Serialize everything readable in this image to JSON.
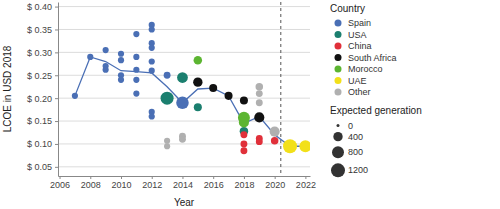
{
  "chart_data": {
    "type": "scatter",
    "x_label": "Year",
    "y_label": "LCOE in USD 2018",
    "xlim": [
      2005.9,
      2022.3
    ],
    "xticks": [
      2006,
      2008,
      2010,
      2012,
      2014,
      2016,
      2018,
      2020,
      2022
    ],
    "ylim": [
      0.03,
      0.41
    ],
    "yticks": [
      {
        "value": 0.05,
        "label": "$ 0.05"
      },
      {
        "value": 0.1,
        "label": "$ 0.10"
      },
      {
        "value": 0.15,
        "label": "$ 0.15"
      },
      {
        "value": 0.2,
        "label": "$ 0.20"
      },
      {
        "value": 0.25,
        "label": "$ 0.25"
      },
      {
        "value": 0.3,
        "label": "$ 0.30"
      },
      {
        "value": 0.35,
        "label": "$ 0.35"
      },
      {
        "value": 0.4,
        "label": "$ 0.40"
      }
    ],
    "grid": true,
    "legend": "right",
    "legend_title": "Country",
    "size_title": "Expected generation",
    "size_legend": [
      0,
      400,
      800,
      1200
    ],
    "vline_x": 2020.4,
    "trend": {
      "type": "line",
      "color": "#4a6fb5",
      "x": [
        2007,
        2008,
        2009,
        2010,
        2011,
        2012,
        2013,
        2014,
        2015,
        2016,
        2017,
        2018,
        2019,
        2020,
        2021,
        2022
      ],
      "values": [
        0.205,
        0.29,
        0.28,
        0.26,
        0.258,
        0.255,
        0.225,
        0.19,
        0.22,
        0.222,
        0.205,
        0.145,
        0.16,
        0.12,
        0.095,
        0.095
      ]
    },
    "series": [
      {
        "name": "Spain",
        "color": "#4a6fb5",
        "x": [
          2007,
          2008,
          2009,
          2009,
          2009,
          2010,
          2010,
          2010,
          2010,
          2011,
          2011,
          2011,
          2011,
          2011,
          2012,
          2012,
          2012,
          2012,
          2012,
          2012,
          2012,
          2012,
          2013,
          2014
        ],
        "values": [
          0.205,
          0.29,
          0.305,
          0.27,
          0.262,
          0.297,
          0.283,
          0.25,
          0.24,
          0.34,
          0.29,
          0.262,
          0.24,
          0.21,
          0.36,
          0.35,
          0.32,
          0.31,
          0.28,
          0.26,
          0.17,
          0.16,
          0.25,
          0.19
        ],
        "sizes": [
          100,
          100,
          100,
          100,
          100,
          100,
          100,
          100,
          100,
          100,
          100,
          100,
          100,
          100,
          100,
          100,
          100,
          100,
          100,
          100,
          100,
          100,
          150,
          900
        ]
      },
      {
        "name": "USA",
        "color": "#1b7f6f",
        "x": [
          2013,
          2014,
          2015,
          2018
        ],
        "values": [
          0.2,
          0.245,
          0.18,
          0.128
        ],
        "sizes": [
          1000,
          600,
          250,
          300
        ]
      },
      {
        "name": "China",
        "color": "#e0303a",
        "x": [
          2018,
          2018,
          2018,
          2019,
          2019,
          2020
        ],
        "values": [
          0.12,
          0.1,
          0.085,
          0.112,
          0.105,
          0.107
        ],
        "sizes": [
          150,
          150,
          150,
          150,
          150,
          200
        ]
      },
      {
        "name": "South Africa",
        "color": "#111111",
        "x": [
          2015,
          2016,
          2017,
          2018,
          2019
        ],
        "values": [
          0.235,
          0.222,
          0.205,
          0.195,
          0.158
        ],
        "sizes": [
          400,
          250,
          250,
          250,
          500
        ]
      },
      {
        "name": "Morocco",
        "color": "#5cb531",
        "x": [
          2015,
          2018,
          2018
        ],
        "values": [
          0.283,
          0.157,
          0.147
        ],
        "sizes": [
          300,
          800,
          500
        ]
      },
      {
        "name": "UAE",
        "color": "#f2e01a",
        "x": [
          2021,
          2022
        ],
        "values": [
          0.095,
          0.095
        ],
        "sizes": [
          1200,
          800
        ]
      },
      {
        "name": "Other",
        "color": "#b0b0b0",
        "x": [
          2013,
          2013,
          2014,
          2014,
          2019,
          2019,
          2019,
          2020
        ],
        "values": [
          0.107,
          0.095,
          0.117,
          0.11,
          0.225,
          0.21,
          0.19,
          0.127
        ],
        "sizes": [
          100,
          100,
          150,
          150,
          200,
          150,
          150,
          500
        ]
      }
    ]
  }
}
